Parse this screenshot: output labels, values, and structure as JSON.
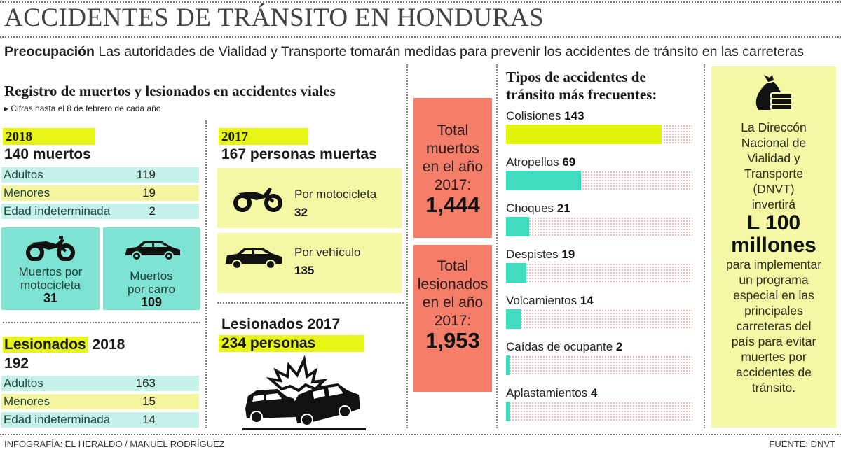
{
  "header": {
    "title": "ACCIDENTES DE TRÁNSITO EN HONDURAS",
    "lead_bold": "Preocupación",
    "lead_text": " Las autoridades de Vialidad y Transporte tomarán medidas para prevenir los accidentes de tránsito en las carreteras"
  },
  "registro": {
    "title": "Registro de muertos y lesionados en accidentes viales",
    "note": "▸ Cifras hasta el 8 de febrero de cada año"
  },
  "muertos_2018": {
    "year": "2018",
    "headline": "140 muertos",
    "rows": [
      {
        "label": "Adultos",
        "value": "119"
      },
      {
        "label": "Menores",
        "value": "19"
      },
      {
        "label": "Edad indeterminada",
        "value": "2"
      }
    ],
    "moto": {
      "label1": "Muertos por",
      "label2": "motocicleta",
      "value": "31",
      "icon": "motorcycle-icon"
    },
    "carro": {
      "label1": "Muertos",
      "label2": "por carro",
      "value": "109",
      "icon": "car-icon"
    }
  },
  "lesionados_2018": {
    "label": "Lesionados",
    "year": " 2018",
    "total": "192",
    "rows": [
      {
        "label": "Adultos",
        "value": "163"
      },
      {
        "label": "Menores",
        "value": "15"
      },
      {
        "label": "Edad indeterminada",
        "value": "14"
      }
    ]
  },
  "muertos_2017": {
    "year": "2017",
    "headline": "167 personas muertas",
    "moto": {
      "label": "Por motocicleta",
      "value": "32",
      "icon": "motorcycle-icon"
    },
    "vehiculo": {
      "label": "Por vehículo",
      "value": "135",
      "icon": "car-icon"
    }
  },
  "lesionados_2017": {
    "title": "Lesionados 2017",
    "total": "234 personas",
    "icon": "car-crash-icon"
  },
  "totales": {
    "muertos": {
      "l1": "Total",
      "l2": "muertos",
      "l3": "en el año",
      "l4": "2017:",
      "value": "1,444"
    },
    "lesionados": {
      "l1": "Total",
      "l2": "lesionados",
      "l3": "en el año",
      "l4": "2017:",
      "value": "1,953"
    }
  },
  "chart_data": {
    "type": "bar",
    "orientation": "horizontal",
    "title": "Tipos de accidentes de tránsito más frecuentes:",
    "categories": [
      "Colisiones",
      "Atropellos",
      "Choques",
      "Despistes",
      "Volcamientos",
      "Caídas de ocupante",
      "Aplastamientos"
    ],
    "values": [
      143,
      69,
      21,
      19,
      14,
      2,
      4
    ],
    "colors": [
      "#e2f40c",
      "#3fdcc0",
      "#3fdcc0",
      "#3fdcc0",
      "#3fdcc0",
      "#3fdcc0",
      "#3fdcc0"
    ],
    "xlim": [
      0,
      170
    ],
    "grid": false,
    "legend": "none"
  },
  "bars_title_l1": "Tipos de accidentes de",
  "bars_title_l2": "tránsito más frecuentes:",
  "dnvt": {
    "icon": "money-bag-icon",
    "text1": [
      "La Direccón",
      "Nacional de",
      "Vialidad y",
      "Transporte",
      "(DNVT)",
      "invertirá"
    ],
    "amount1": "L 100",
    "amount2": "millones",
    "text2": [
      "para implementar",
      "un programa",
      "especial en las",
      "principales",
      "carreteras del",
      "país para evitar",
      "muertes por",
      "accidentes de",
      "tránsito."
    ]
  },
  "footer": {
    "credit": "INFOGRAFÍA: EL HERALDO / MANUEL RODRÍGUEZ",
    "source": "FUENTE: DNVT"
  },
  "colors": {
    "yellow_highlight": "#e6f516",
    "teal": "#7ee3d3",
    "light_teal": "#c4f2ea",
    "light_yellow": "#f4f7a4",
    "salmon": "#f47e6a",
    "bar_yellow": "#e2f40c",
    "bar_teal": "#3fdcc0"
  }
}
